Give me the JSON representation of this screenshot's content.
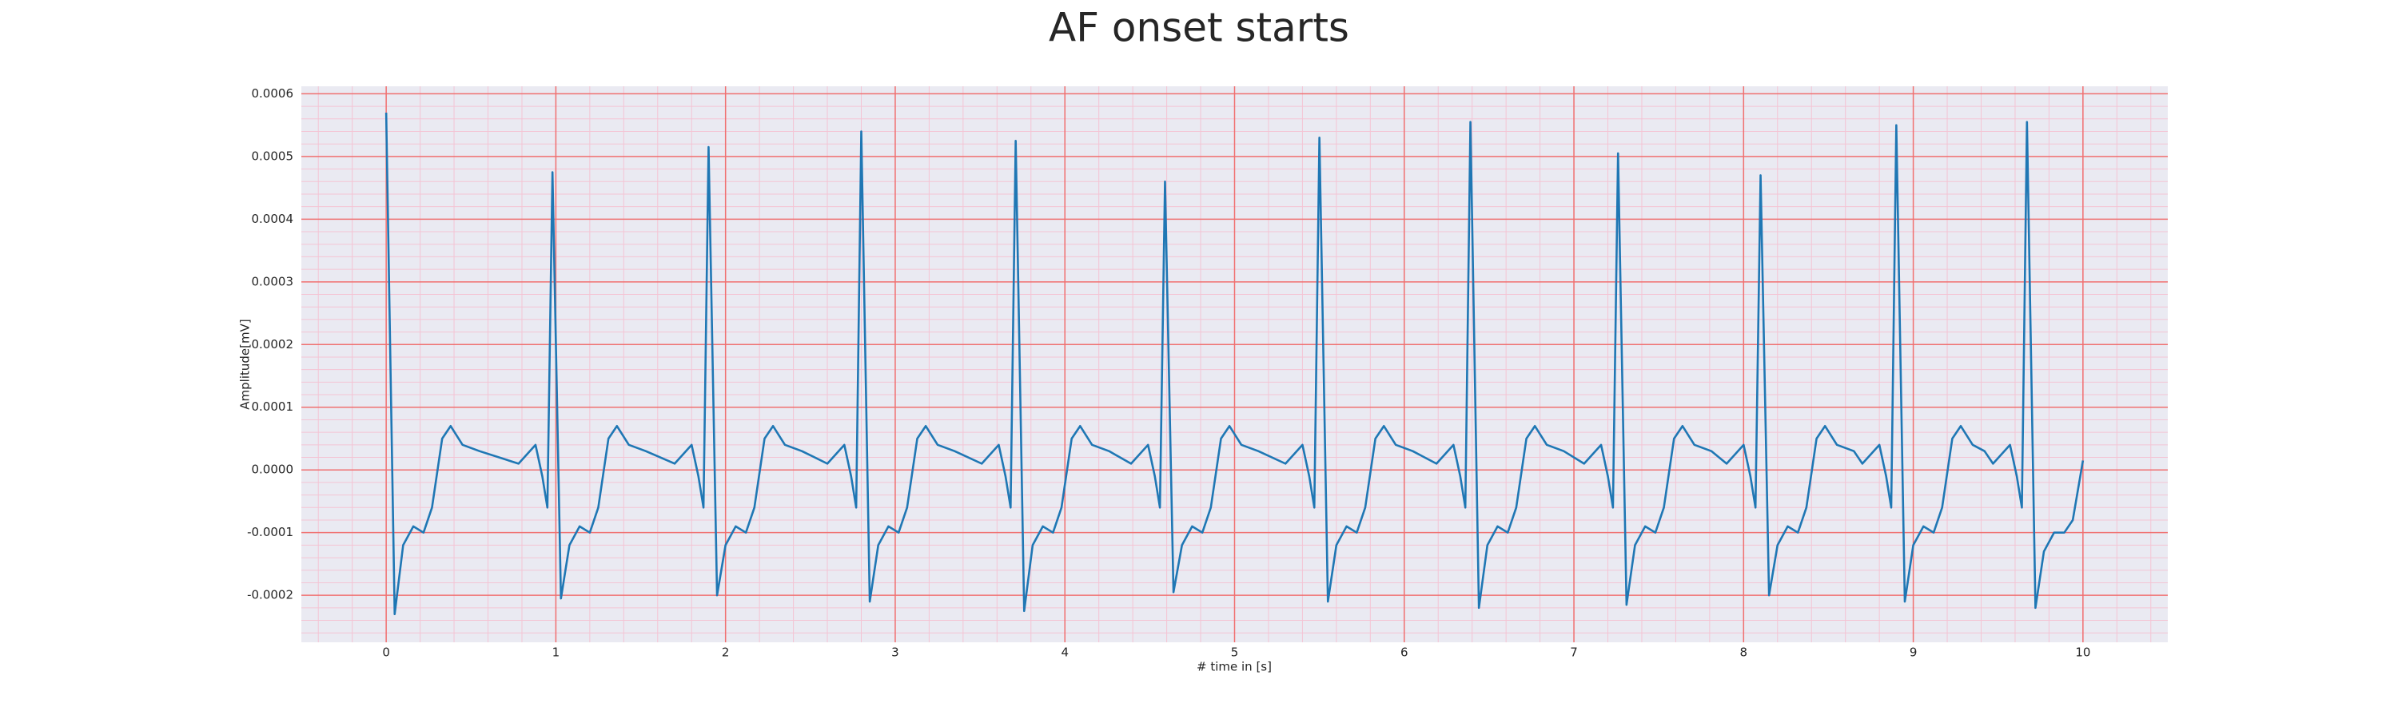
{
  "chart_data": {
    "type": "line",
    "title": "AF onset starts",
    "x_label": "# time in [s]",
    "y_label": "Amplitude[mV]",
    "color": "#1f77b4",
    "grid": true,
    "grid_color": "#f07070",
    "minor_grid": true,
    "minor_divisions": 5,
    "minor_grid_color": "#f4c4d4",
    "background": "#eaeaf2",
    "xlim": [
      -0.5,
      10.5
    ],
    "ylim": [
      -0.000275,
      0.000612
    ],
    "xticks": [
      0,
      1,
      2,
      3,
      4,
      5,
      6,
      7,
      8,
      9,
      10
    ],
    "yticks": [
      {
        "value": -0.0002,
        "label": "-0.0002"
      },
      {
        "value": -0.0001,
        "label": "-0.0001"
      },
      {
        "value": 0,
        "label": "0.0000"
      },
      {
        "value": 0.0001,
        "label": "0.0001"
      },
      {
        "value": 0.0002,
        "label": "0.0002"
      },
      {
        "value": 0.0003,
        "label": "0.0003"
      },
      {
        "value": 0.0004,
        "label": "0.0004"
      },
      {
        "value": 0.0005,
        "label": "0.0005"
      },
      {
        "value": 0.0006,
        "label": "0.0006"
      }
    ],
    "x": [
      0,
      0.05,
      0.1,
      0.16,
      0.22,
      0.27,
      0.33,
      0.38,
      0.45,
      0.55,
      0.78,
      0.88,
      0.92,
      0.95,
      0.98,
      1.03,
      1.08,
      1.14,
      1.2,
      1.25,
      1.31,
      1.36,
      1.43,
      1.53,
      1.7,
      1.8,
      1.84,
      1.87,
      1.9,
      1.95,
      2.0,
      2.06,
      2.12,
      2.17,
      2.23,
      2.28,
      2.35,
      2.45,
      2.6,
      2.7,
      2.74,
      2.77,
      2.8,
      2.85,
      2.9,
      2.96,
      3.02,
      3.07,
      3.13,
      3.18,
      3.25,
      3.35,
      3.51,
      3.61,
      3.65,
      3.68,
      3.71,
      3.76,
      3.81,
      3.87,
      3.93,
      3.98,
      4.04,
      4.09,
      4.16,
      4.26,
      4.39,
      4.49,
      4.53,
      4.56,
      4.59,
      4.64,
      4.69,
      4.75,
      4.81,
      4.86,
      4.92,
      4.97,
      5.04,
      5.14,
      5.3,
      5.4,
      5.44,
      5.47,
      5.5,
      5.55,
      5.6,
      5.66,
      5.72,
      5.77,
      5.83,
      5.88,
      5.95,
      6.05,
      6.19,
      6.29,
      6.33,
      6.36,
      6.39,
      6.44,
      6.49,
      6.55,
      6.61,
      6.66,
      6.72,
      6.77,
      6.84,
      6.94,
      7.06,
      7.16,
      7.2,
      7.23,
      7.26,
      7.31,
      7.36,
      7.42,
      7.48,
      7.53,
      7.59,
      7.64,
      7.71,
      7.81,
      7.9,
      8.0,
      8.04,
      8.07,
      8.1,
      8.15,
      8.2,
      8.26,
      8.32,
      8.37,
      8.43,
      8.48,
      8.55,
      8.65,
      8.7,
      8.8,
      8.84,
      8.87,
      8.9,
      8.95,
      9.0,
      9.06,
      9.12,
      9.17,
      9.23,
      9.28,
      9.35,
      9.42,
      9.47,
      9.57,
      9.61,
      9.64,
      9.67,
      9.72,
      9.77,
      9.83,
      9.89,
      9.94,
      10.0
    ],
    "values": [
      0.00057,
      -0.00023,
      -0.00012,
      -9e-05,
      -0.0001,
      -6e-05,
      5e-05,
      7e-05,
      4e-05,
      3e-05,
      1e-05,
      4e-05,
      -1e-05,
      -6e-05,
      0.000475,
      -0.000205,
      -0.00012,
      -9e-05,
      -0.0001,
      -6e-05,
      5e-05,
      7e-05,
      4e-05,
      3e-05,
      1e-05,
      4e-05,
      -1e-05,
      -6e-05,
      0.000515,
      -0.0002,
      -0.00012,
      -9e-05,
      -0.0001,
      -6e-05,
      5e-05,
      7e-05,
      4e-05,
      3e-05,
      1e-05,
      4e-05,
      -1e-05,
      -6e-05,
      0.00054,
      -0.00021,
      -0.00012,
      -9e-05,
      -0.0001,
      -6e-05,
      5e-05,
      7e-05,
      4e-05,
      3e-05,
      1e-05,
      4e-05,
      -1e-05,
      -6e-05,
      0.000525,
      -0.000225,
      -0.00012,
      -9e-05,
      -0.0001,
      -6e-05,
      5e-05,
      7e-05,
      4e-05,
      3e-05,
      1e-05,
      4e-05,
      -1e-05,
      -6e-05,
      0.00046,
      -0.000195,
      -0.00012,
      -9e-05,
      -0.0001,
      -6e-05,
      5e-05,
      7e-05,
      4e-05,
      3e-05,
      1e-05,
      4e-05,
      -1e-05,
      -6e-05,
      0.00053,
      -0.00021,
      -0.00012,
      -9e-05,
      -0.0001,
      -6e-05,
      5e-05,
      7e-05,
      4e-05,
      3e-05,
      1e-05,
      4e-05,
      -1e-05,
      -6e-05,
      0.000555,
      -0.00022,
      -0.00012,
      -9e-05,
      -0.0001,
      -6e-05,
      5e-05,
      7e-05,
      4e-05,
      3e-05,
      1e-05,
      4e-05,
      -1e-05,
      -6e-05,
      0.000505,
      -0.000215,
      -0.00012,
      -9e-05,
      -0.0001,
      -6e-05,
      5e-05,
      7e-05,
      4e-05,
      3e-05,
      1e-05,
      4e-05,
      -1e-05,
      -6e-05,
      0.00047,
      -0.0002,
      -0.00012,
      -9e-05,
      -0.0001,
      -6e-05,
      5e-05,
      7e-05,
      4e-05,
      3e-05,
      1e-05,
      4e-05,
      -1e-05,
      -6e-05,
      0.00055,
      -0.00021,
      -0.00012,
      -9e-05,
      -0.0001,
      -6e-05,
      5e-05,
      7e-05,
      4e-05,
      3e-05,
      1e-05,
      4e-05,
      -1e-05,
      -6e-05,
      0.000555,
      -0.00022,
      -0.00013,
      -0.0001,
      -0.0001,
      -8e-05,
      1.5e-05
    ]
  }
}
